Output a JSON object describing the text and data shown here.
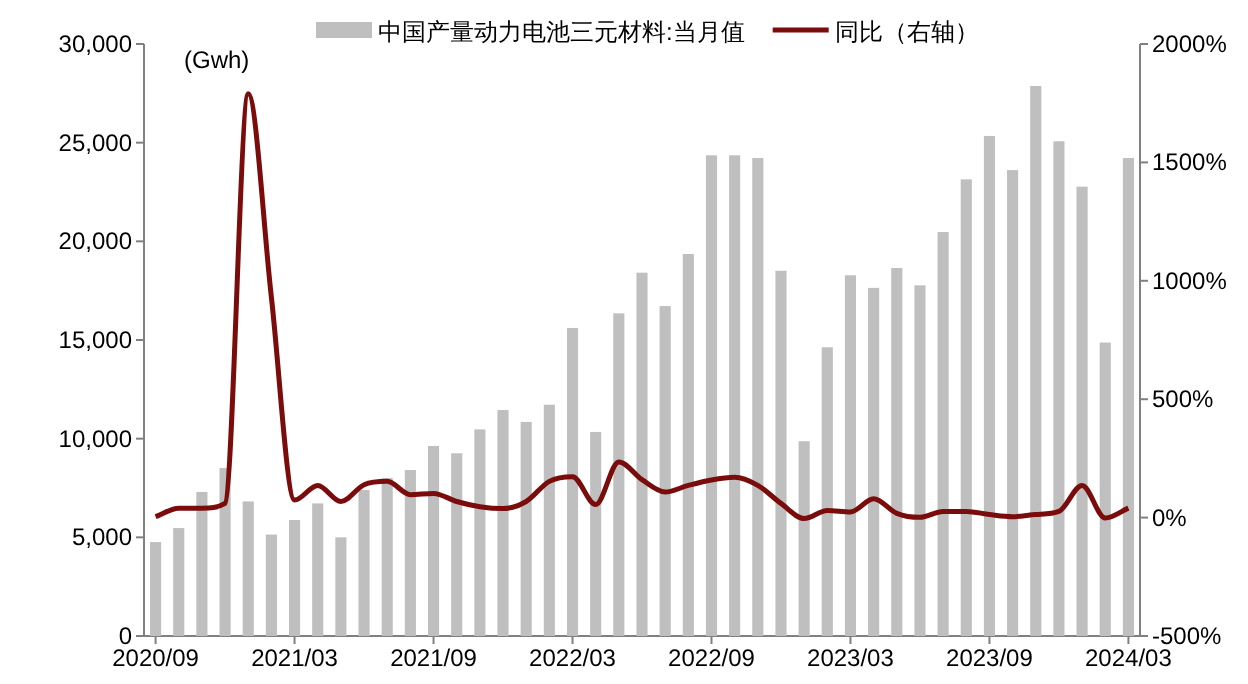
{
  "chart_data": {
    "type": "bar",
    "ylabel": "(Gwh)",
    "legend": "top",
    "categories": [
      "2020/09",
      null,
      null,
      null,
      null,
      null,
      "2021/03",
      null,
      null,
      null,
      null,
      null,
      "2021/09",
      null,
      null,
      null,
      null,
      null,
      "2022/03",
      null,
      null,
      null,
      null,
      null,
      "2022/09",
      null,
      null,
      null,
      null,
      null,
      "2023/03",
      null,
      null,
      null,
      null,
      null,
      "2023/09",
      null,
      null,
      null,
      null,
      null,
      "2024/03"
    ],
    "series": [
      {
        "name": "中国产量动力电池三元材料:当月值",
        "color": "#bfbfbf",
        "values": [
          4760,
          5470,
          7300,
          8510,
          6820,
          5140,
          5880,
          6720,
          5000,
          7400,
          8000,
          8410,
          9630,
          9260,
          10470,
          11450,
          10850,
          11720,
          15610,
          10340,
          16350,
          18410,
          16720,
          19360,
          24360,
          24360,
          24220,
          18510,
          9870,
          14630,
          18280,
          17640,
          18650,
          17770,
          20470,
          23140,
          25340,
          23610,
          27870,
          25070,
          22770,
          14870,
          24220
        ]
      },
      {
        "name": "同比（右轴）",
        "type": "line",
        "axis": "y2",
        "color": "#7b0c0c",
        "values": [
          4,
          40,
          40,
          60,
          1790,
          930,
          74,
          136,
          68,
          139,
          153,
          97,
          102,
          68,
          46,
          38,
          68,
          153,
          173,
          55,
          235,
          160,
          108,
          136,
          159,
          170,
          136,
          60,
          -4,
          30,
          24,
          80,
          18,
          1,
          26,
          26,
          13,
          4,
          13,
          26,
          136,
          -2,
          40
        ]
      }
    ],
    "ylim": [
      0,
      30000
    ],
    "yticks": [
      0,
      {
        "value": 5000,
        "label": "5,000"
      },
      {
        "value": 10000,
        "label": "10,000"
      },
      {
        "value": 15000,
        "label": "15,000"
      },
      {
        "value": 20000,
        "label": "20,000"
      },
      {
        "value": 25000,
        "label": "25,000"
      },
      {
        "value": 30000,
        "label": "30,000"
      }
    ],
    "y2lim": [
      -500,
      2000
    ],
    "y2ticks": [
      {
        "value": -500,
        "label": "-500%"
      },
      {
        "value": 0,
        "label": "0%"
      },
      {
        "value": 500,
        "label": "500%"
      },
      {
        "value": 1000,
        "label": "1000%"
      },
      {
        "value": 1500,
        "label": "1500%"
      },
      {
        "value": 2000,
        "label": "2000%"
      }
    ]
  }
}
